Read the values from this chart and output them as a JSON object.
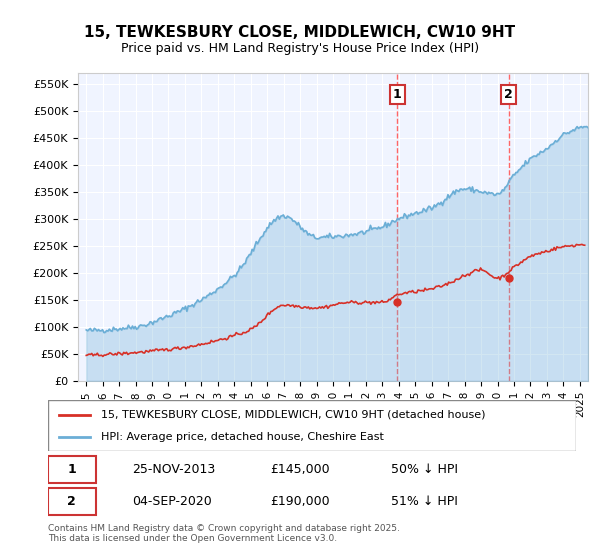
{
  "title": "15, TEWKESBURY CLOSE, MIDDLEWICH, CW10 9HT",
  "subtitle": "Price paid vs. HM Land Registry's House Price Index (HPI)",
  "ylabel_ticks": [
    "£0",
    "£50K",
    "£100K",
    "£150K",
    "£200K",
    "£250K",
    "£300K",
    "£350K",
    "£400K",
    "£450K",
    "£500K",
    "£550K"
  ],
  "ytick_values": [
    0,
    50000,
    100000,
    150000,
    200000,
    250000,
    300000,
    350000,
    400000,
    450000,
    500000,
    550000
  ],
  "ylim": [
    0,
    570000
  ],
  "xlim_start": 1995.0,
  "xlim_end": 2025.5,
  "xtick_years": [
    1995,
    1996,
    1997,
    1998,
    1999,
    2000,
    2001,
    2002,
    2003,
    2004,
    2005,
    2006,
    2007,
    2008,
    2009,
    2010,
    2011,
    2012,
    2013,
    2014,
    2015,
    2016,
    2017,
    2018,
    2019,
    2020,
    2021,
    2022,
    2023,
    2024,
    2025
  ],
  "hpi_color": "#6baed6",
  "price_color": "#d73027",
  "marker1_x": 2013.9,
  "marker1_y": 145000,
  "marker1_label": "1",
  "marker1_date": "25-NOV-2013",
  "marker1_price": "£145,000",
  "marker1_pct": "50% ↓ HPI",
  "marker2_x": 2020.67,
  "marker2_y": 190000,
  "marker2_label": "2",
  "marker2_date": "04-SEP-2020",
  "marker2_price": "£190,000",
  "marker2_pct": "51% ↓ HPI",
  "legend1_label": "15, TEWKESBURY CLOSE, MIDDLEWICH, CW10 9HT (detached house)",
  "legend2_label": "HPI: Average price, detached house, Cheshire East",
  "footer": "Contains HM Land Registry data © Crown copyright and database right 2025.\nThis data is licensed under the Open Government Licence v3.0.",
  "background_color": "#ffffff",
  "plot_bg_color": "#f0f4ff",
  "grid_color": "#ffffff",
  "dashed_line_color": "#ff6666"
}
